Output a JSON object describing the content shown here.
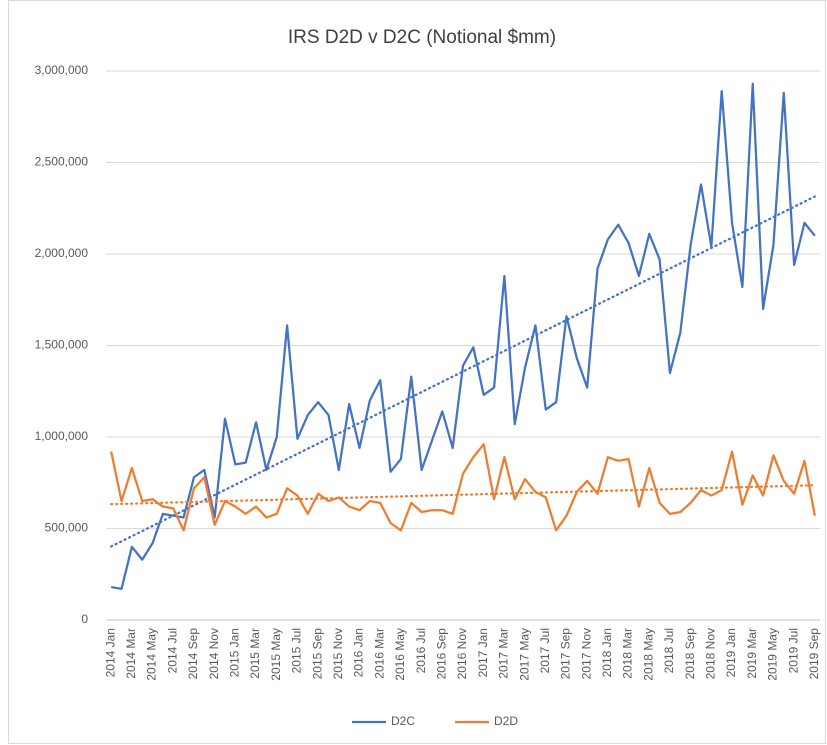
{
  "chart_data": {
    "type": "line",
    "title": "IRS D2D v D2C (Notional $mm)",
    "categories": [
      "2014 Jan",
      null,
      "2014 Mar",
      null,
      "2014 May",
      null,
      "2014 Jul",
      null,
      "2014 Sep",
      null,
      "2014 Nov",
      null,
      "2015 Jan",
      null,
      "2015 Mar",
      null,
      "2015 May",
      null,
      "2015 Jul",
      null,
      "2015 Sep",
      null,
      "2015 Nov",
      null,
      "2016 Jan",
      null,
      "2016 Mar",
      null,
      "2016 May",
      null,
      "2016 Jul",
      null,
      "2016 Sep",
      null,
      "2016 Nov",
      null,
      "2017 Jan",
      null,
      "2017 Mar",
      null,
      "2017 May",
      null,
      "2017 Jul",
      null,
      "2017 Sep",
      null,
      "2017 Nov",
      null,
      "2018 Jan",
      null,
      "2018 Mar",
      null,
      "2018 May",
      null,
      "2018 Jul",
      null,
      "2018 Sep",
      null,
      "2018 Nov",
      null,
      "2019 Jan",
      null,
      "2019 Mar",
      null,
      "2019 May",
      null,
      "2019 Jul",
      null,
      "2019 Sep"
    ],
    "series": [
      {
        "name": "D2C",
        "color": "#4472c4",
        "trendline": true,
        "values": [
          180000,
          170000,
          400000,
          330000,
          420000,
          580000,
          570000,
          560000,
          780000,
          820000,
          560000,
          1100000,
          850000,
          860000,
          1080000,
          820000,
          1000000,
          1610000,
          990000,
          1120000,
          1190000,
          1120000,
          820000,
          1180000,
          940000,
          1200000,
          1310000,
          810000,
          880000,
          1330000,
          820000,
          980000,
          1140000,
          940000,
          1390000,
          1490000,
          1230000,
          1270000,
          1880000,
          1070000,
          1380000,
          1610000,
          1150000,
          1190000,
          1660000,
          1430000,
          1270000,
          1920000,
          2080000,
          2160000,
          2060000,
          1880000,
          2110000,
          1970000,
          1350000,
          1570000,
          2050000,
          2380000,
          2040000,
          2890000,
          2170000,
          1820000,
          2930000,
          1700000,
          2050000,
          2880000,
          1940000,
          2170000,
          2100000
        ]
      },
      {
        "name": "D2D",
        "color": "#ed7d31",
        "trendline": true,
        "values": [
          920000,
          650000,
          830000,
          650000,
          660000,
          620000,
          610000,
          490000,
          720000,
          780000,
          520000,
          650000,
          620000,
          580000,
          620000,
          560000,
          580000,
          720000,
          680000,
          580000,
          690000,
          650000,
          670000,
          620000,
          600000,
          650000,
          640000,
          530000,
          490000,
          640000,
          590000,
          600000,
          600000,
          580000,
          800000,
          890000,
          960000,
          660000,
          890000,
          660000,
          770000,
          700000,
          670000,
          490000,
          570000,
          700000,
          760000,
          690000,
          890000,
          870000,
          880000,
          620000,
          830000,
          640000,
          580000,
          590000,
          640000,
          710000,
          680000,
          710000,
          920000,
          630000,
          790000,
          680000,
          900000,
          760000,
          690000,
          870000,
          570000
        ]
      }
    ],
    "ylim": [
      0,
      3000000
    ],
    "yticks": [
      0,
      {
        "value": 500000,
        "label": "500,000"
      },
      {
        "value": 1000000,
        "label": "1,000,000"
      },
      {
        "value": 1500000,
        "label": "1,500,000"
      },
      {
        "value": 2000000,
        "label": "2,000,000"
      },
      {
        "value": 2500000,
        "label": "2,500,000"
      },
      {
        "value": 3000000,
        "label": "3,000,000"
      }
    ],
    "grid": true,
    "legend": "bottom"
  }
}
